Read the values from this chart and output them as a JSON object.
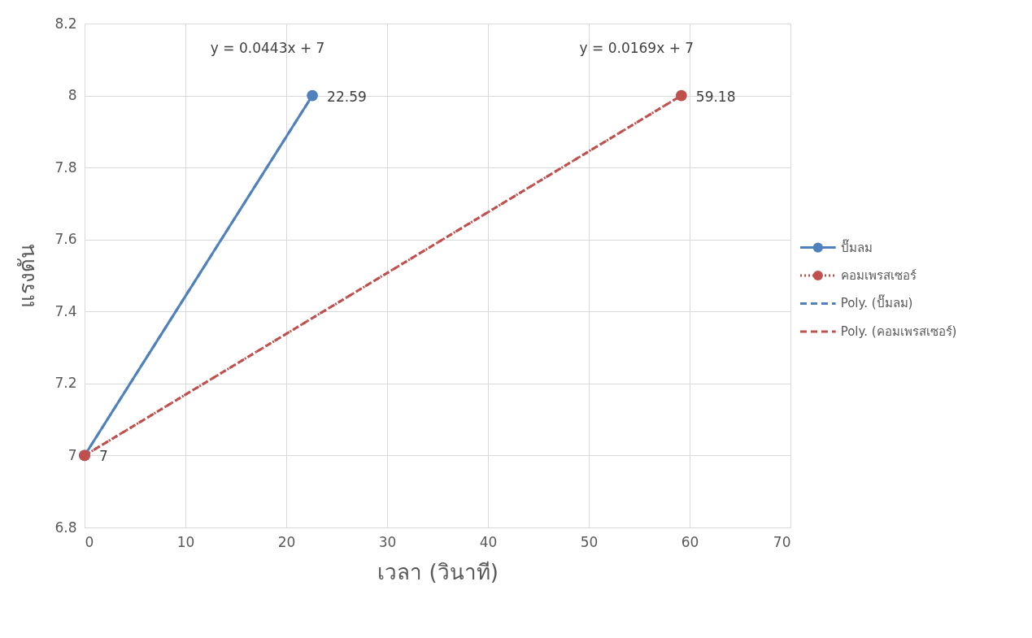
{
  "chart_data": {
    "type": "line",
    "xlabel": "เวลา (วินาที)",
    "ylabel": "แรงดัน",
    "xlim": [
      0,
      70
    ],
    "xticks": [
      0,
      10,
      20,
      30,
      40,
      50,
      60,
      70
    ],
    "ylim": [
      6.8,
      8.2
    ],
    "yticks": [
      6.8,
      7,
      7.2,
      7.4,
      7.6,
      7.8,
      8,
      8.2
    ],
    "grid": true,
    "legend": "right",
    "series": [
      {
        "name": "ปั๊มลม",
        "color": "#4f81bd",
        "x": [
          0,
          22.59
        ],
        "values": [
          7,
          8
        ],
        "marker": "circle",
        "line_style": "solid"
      },
      {
        "name": "คอมเพรสเซอร์",
        "color": "#c0504d",
        "x": [
          0,
          59.18
        ],
        "values": [
          7,
          8
        ],
        "marker": "circle",
        "line_style": "dotted"
      },
      {
        "name": "Poly. (ปั๊มลม)",
        "color": "#4f81bd",
        "x": [
          0,
          22.59
        ],
        "values": [
          7,
          8
        ],
        "marker": "none",
        "line_style": "dashed"
      },
      {
        "name": "Poly. (คอมเพรสเซอร์)",
        "color": "#c0504d",
        "x": [
          0,
          59.18
        ],
        "values": [
          7,
          8
        ],
        "marker": "none",
        "line_style": "dashed"
      }
    ],
    "annotations": [
      "y = 0.0443x + 7",
      "y = 0.0169x + 7",
      {
        "text": "22.59",
        "x": 22.59,
        "y": 8
      },
      {
        "text": "59.18",
        "x": 59.18,
        "y": 8
      },
      {
        "text": "7",
        "x": 0,
        "y": 7
      }
    ]
  }
}
